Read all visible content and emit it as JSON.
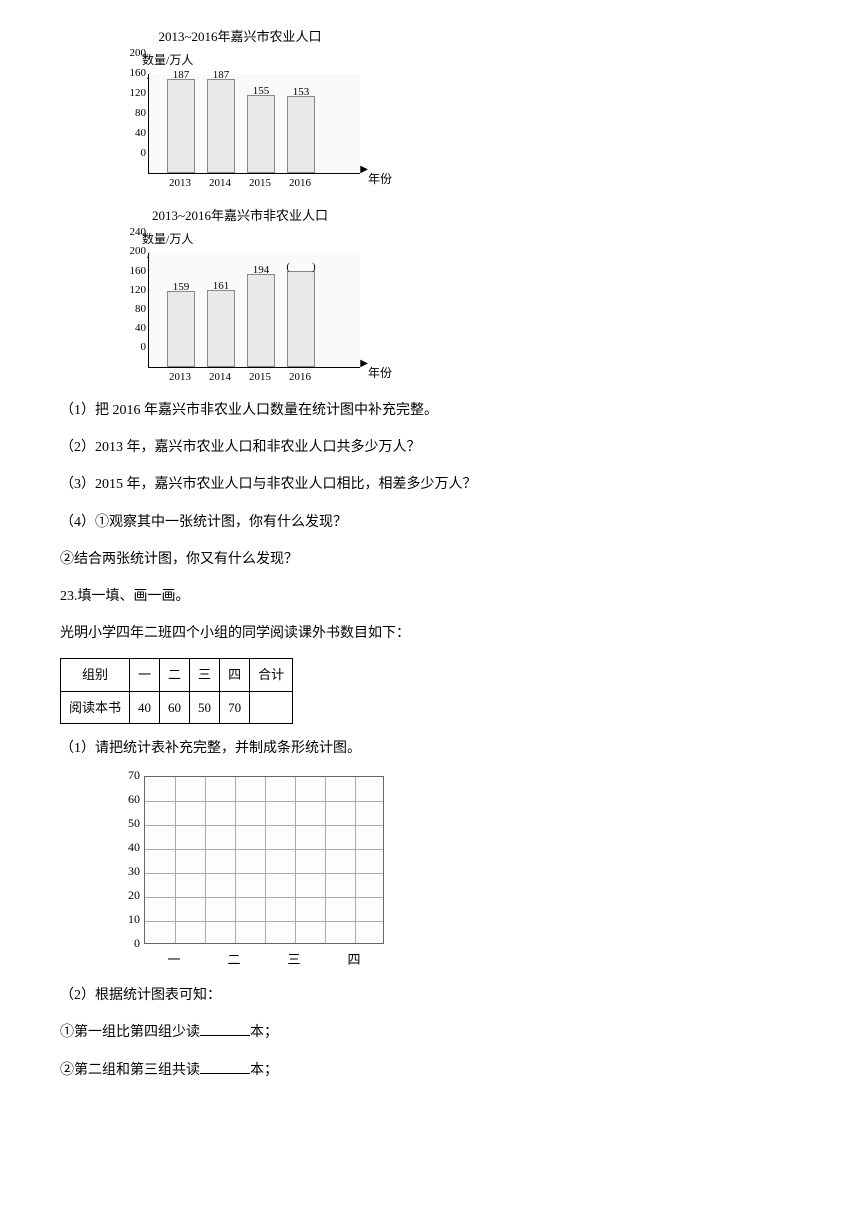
{
  "chart1": {
    "title": "2013~2016年嘉兴市农业人口",
    "y_label": "数量/万人",
    "x_label": "年份",
    "ymax": 200,
    "ytick_step": 40,
    "categories": [
      "2013",
      "2014",
      "2015",
      "2016"
    ],
    "values": [
      187,
      187,
      155,
      153
    ],
    "value_labels": [
      "187",
      "187",
      "155",
      "153"
    ],
    "bar_color": "#e8e8e8",
    "border_color": "#888"
  },
  "chart2": {
    "title": "2013~2016年嘉兴市非农业人口",
    "y_label": "数量/万人",
    "x_label": "年份",
    "ymax": 240,
    "ytick_step": 40,
    "categories": [
      "2013",
      "2014",
      "2015",
      "2016"
    ],
    "values": [
      159,
      161,
      194,
      200
    ],
    "value_labels": [
      "159",
      "161",
      "194",
      "(　　)"
    ],
    "bar_color": "#e8e8e8",
    "border_color": "#888"
  },
  "q1": "（1）把 2016 年嘉兴市非农业人口数量在统计图中补充完整。",
  "q2": "（2）2013 年，嘉兴市农业人口和非农业人口共多少万人？",
  "q3": "（3）2015 年，嘉兴市农业人口与非农业人口相比，相差多少万人？",
  "q4_1": "（4）①观察其中一张统计图，你有什么发现？",
  "q4_2": "②结合两张统计图，你又有什么发现？",
  "q23_title": "23.填一填、画一画。",
  "q23_desc": "光明小学四年二班四个小组的同学阅读课外书数目如下：",
  "table": {
    "headers": [
      "组别",
      "一",
      "二",
      "三",
      "四",
      "合计"
    ],
    "row_label": "阅读本书",
    "values": [
      "40",
      "60",
      "50",
      "70",
      ""
    ]
  },
  "q23_1": "（1）请把统计表补充完整，并制成条形统计图。",
  "grid_chart": {
    "ymax": 70,
    "ytick_step": 10,
    "x_labels": [
      "一",
      "二",
      "三",
      "四"
    ],
    "cols": 8,
    "rows": 7
  },
  "q23_2": "（2）根据统计图表可知：",
  "q23_2_1a": "①第一组比第四组少读",
  "q23_2_1b": "本；",
  "q23_2_2a": "②第二组和第三组共读",
  "q23_2_2b": "本；"
}
